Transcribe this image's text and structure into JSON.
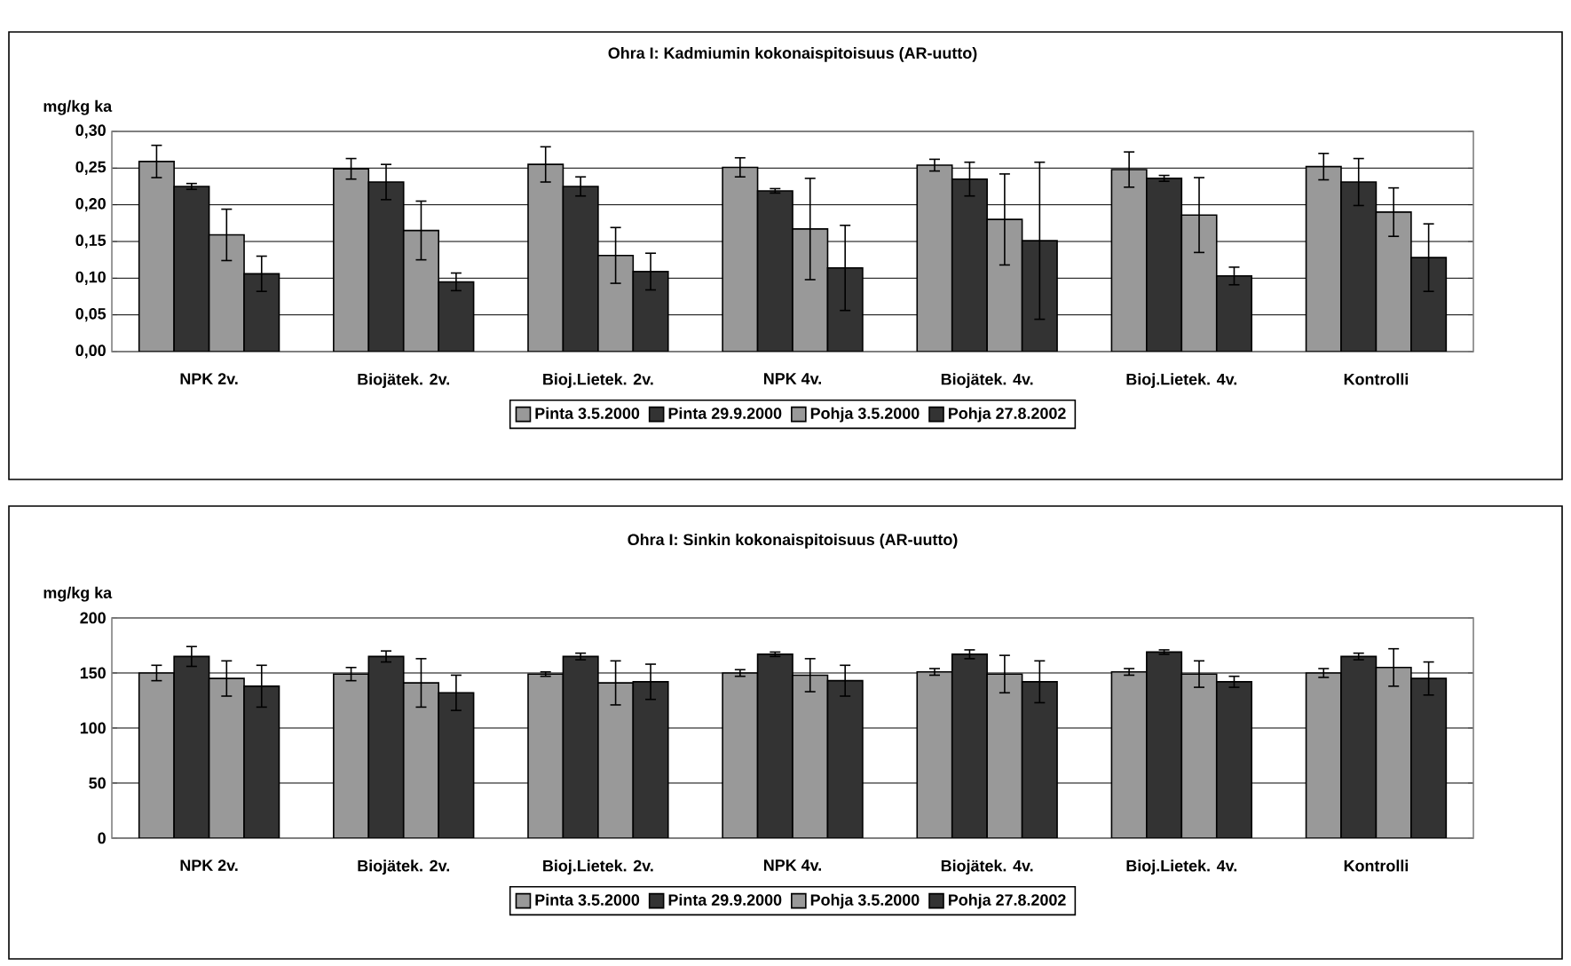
{
  "chart_data": [
    {
      "type": "bar",
      "title": "Ohra I: Kadmiumin kokonaispitoisuus (AR-uutto)",
      "ylabel": "mg/kg ka",
      "categories": [
        "NPK 2v.",
        "Biojätek. 2v.",
        "Bioj.Lietek. 2v.",
        "NPK 4v.",
        "Biojätek. 4v.",
        "Bioj.Lietek. 4v.",
        "Kontrolli"
      ],
      "series": [
        {
          "name": "Pinta 3.5.2000",
          "color": "#999999",
          "values": [
            0.259,
            0.249,
            0.255,
            0.251,
            0.254,
            0.248,
            0.252
          ],
          "errors": [
            0.022,
            0.014,
            0.024,
            0.013,
            0.008,
            0.024,
            0.018
          ]
        },
        {
          "name": "Pinta  29.9.2000",
          "color": "#333333",
          "values": [
            0.225,
            0.231,
            0.225,
            0.219,
            0.235,
            0.236,
            0.231
          ],
          "errors": [
            0.004,
            0.024,
            0.013,
            0.003,
            0.023,
            0.004,
            0.032
          ]
        },
        {
          "name": "Pohja 3.5.2000",
          "color": "#999999",
          "values": [
            0.159,
            0.165,
            0.131,
            0.167,
            0.18,
            0.186,
            0.19
          ],
          "errors": [
            0.035,
            0.04,
            0.038,
            0.069,
            0.062,
            0.051,
            0.033
          ]
        },
        {
          "name": "Pohja 27.8.2002",
          "color": "#333333",
          "values": [
            0.106,
            0.095,
            0.109,
            0.114,
            0.151,
            0.103,
            0.128
          ],
          "errors": [
            0.024,
            0.012,
            0.025,
            0.058,
            0.107,
            0.012,
            0.046
          ]
        }
      ],
      "ylim": [
        0,
        0.3
      ],
      "yticks": [
        {
          "value": 0,
          "label": "0,00"
        },
        {
          "value": 0.05,
          "label": "0,05"
        },
        {
          "value": 0.1,
          "label": "0,10"
        },
        {
          "value": 0.15,
          "label": "0,15"
        },
        {
          "value": 0.2,
          "label": "0,20"
        },
        {
          "value": 0.25,
          "label": "0,25"
        },
        {
          "value": 0.3,
          "label": "0,30"
        }
      ],
      "grid": "y",
      "legend": "bottom"
    },
    {
      "type": "bar",
      "title": "Ohra I: Sinkin kokonaispitoisuus (AR-uutto)",
      "ylabel": "mg/kg ka",
      "categories": [
        "NPK 2v.",
        "Biojätek. 2v.",
        "Bioj.Lietek. 2v.",
        "NPK 4v.",
        "Biojätek. 4v.",
        "Bioj.Lietek. 4v.",
        "Kontrolli"
      ],
      "series": [
        {
          "name": "Pinta 3.5.2000",
          "color": "#999999",
          "values": [
            150,
            149,
            149,
            150,
            151,
            151,
            150
          ],
          "errors": [
            7,
            6,
            2,
            3,
            3,
            3,
            4
          ]
        },
        {
          "name": "Pinta  29.9.2000",
          "color": "#333333",
          "values": [
            165,
            165,
            165,
            167,
            167,
            169,
            165
          ],
          "errors": [
            9,
            5,
            3,
            2,
            4,
            2,
            3
          ]
        },
        {
          "name": "Pohja 3.5.2000",
          "color": "#999999",
          "values": [
            145,
            141,
            141,
            148,
            149,
            149,
            155
          ],
          "errors": [
            16,
            22,
            20,
            15,
            17,
            12,
            17
          ]
        },
        {
          "name": "Pohja 27.8.2002",
          "color": "#333333",
          "values": [
            138,
            132,
            142,
            143,
            142,
            142,
            145
          ],
          "errors": [
            19,
            16,
            16,
            14,
            19,
            5,
            15
          ]
        }
      ],
      "ylim": [
        0,
        200
      ],
      "yticks": [
        0,
        50,
        100,
        150,
        200
      ],
      "grid": "y",
      "legend": "bottom"
    }
  ]
}
